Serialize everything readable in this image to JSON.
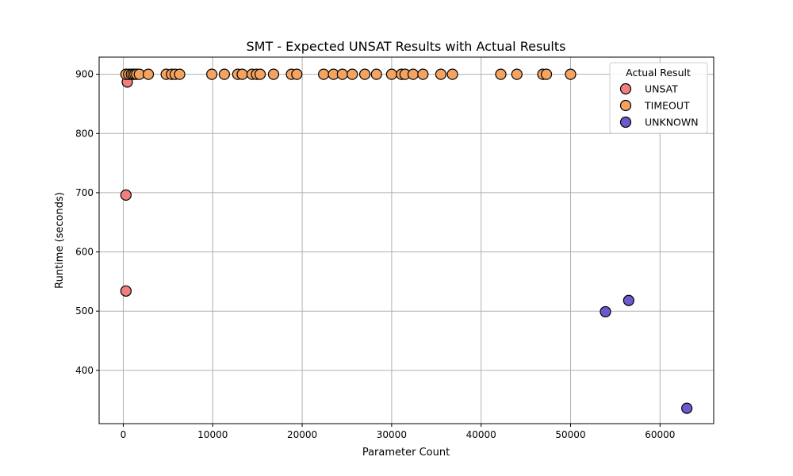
{
  "chart_data": {
    "type": "scatter",
    "title": "SMT - Expected UNSAT Results with Actual Results",
    "xlabel": "Parameter Count",
    "ylabel": "Runtime (seconds)",
    "xlim": [
      -2700,
      66000
    ],
    "ylim": [
      310,
      929
    ],
    "xticks": [
      0,
      10000,
      20000,
      30000,
      40000,
      50000,
      60000
    ],
    "xtick_labels": [
      "0",
      "10000",
      "20000",
      "30000",
      "40000",
      "50000",
      "60000"
    ],
    "yticks": [
      400,
      500,
      600,
      700,
      800,
      900
    ],
    "ytick_labels": [
      "400",
      "500",
      "600",
      "700",
      "800",
      "900"
    ],
    "grid": true,
    "legend": {
      "title": "Actual Result",
      "placement": "top-right"
    },
    "series": [
      {
        "name": "UNSAT",
        "color": "#f08080",
        "points": [
          {
            "x": 450,
            "y": 887
          },
          {
            "x": 300,
            "y": 696
          },
          {
            "x": 300,
            "y": 534
          }
        ]
      },
      {
        "name": "TIMEOUT",
        "color": "#f4a460",
        "points": [
          {
            "x": 300,
            "y": 900
          },
          {
            "x": 600,
            "y": 900
          },
          {
            "x": 900,
            "y": 900
          },
          {
            "x": 1100,
            "y": 900
          },
          {
            "x": 1300,
            "y": 900
          },
          {
            "x": 1500,
            "y": 900
          },
          {
            "x": 1800,
            "y": 900
          },
          {
            "x": 2800,
            "y": 900
          },
          {
            "x": 4800,
            "y": 900
          },
          {
            "x": 5400,
            "y": 900
          },
          {
            "x": 5800,
            "y": 900
          },
          {
            "x": 6300,
            "y": 900
          },
          {
            "x": 9900,
            "y": 900
          },
          {
            "x": 11300,
            "y": 900
          },
          {
            "x": 12800,
            "y": 900
          },
          {
            "x": 13300,
            "y": 900
          },
          {
            "x": 14400,
            "y": 900
          },
          {
            "x": 14900,
            "y": 900
          },
          {
            "x": 15300,
            "y": 900
          },
          {
            "x": 16800,
            "y": 900
          },
          {
            "x": 18800,
            "y": 900
          },
          {
            "x": 19400,
            "y": 900
          },
          {
            "x": 22400,
            "y": 900
          },
          {
            "x": 23500,
            "y": 900
          },
          {
            "x": 24500,
            "y": 900
          },
          {
            "x": 25600,
            "y": 900
          },
          {
            "x": 27000,
            "y": 900
          },
          {
            "x": 28300,
            "y": 900
          },
          {
            "x": 30000,
            "y": 900
          },
          {
            "x": 31100,
            "y": 900
          },
          {
            "x": 31500,
            "y": 900
          },
          {
            "x": 32400,
            "y": 900
          },
          {
            "x": 33500,
            "y": 900
          },
          {
            "x": 35500,
            "y": 900
          },
          {
            "x": 36800,
            "y": 900
          },
          {
            "x": 42200,
            "y": 900
          },
          {
            "x": 44000,
            "y": 900
          },
          {
            "x": 46900,
            "y": 900
          },
          {
            "x": 47300,
            "y": 900
          },
          {
            "x": 50000,
            "y": 900
          }
        ]
      },
      {
        "name": "UNKNOWN",
        "color": "#6a5acd",
        "points": [
          {
            "x": 53900,
            "y": 499
          },
          {
            "x": 56500,
            "y": 518
          },
          {
            "x": 63000,
            "y": 336
          }
        ]
      }
    ]
  }
}
